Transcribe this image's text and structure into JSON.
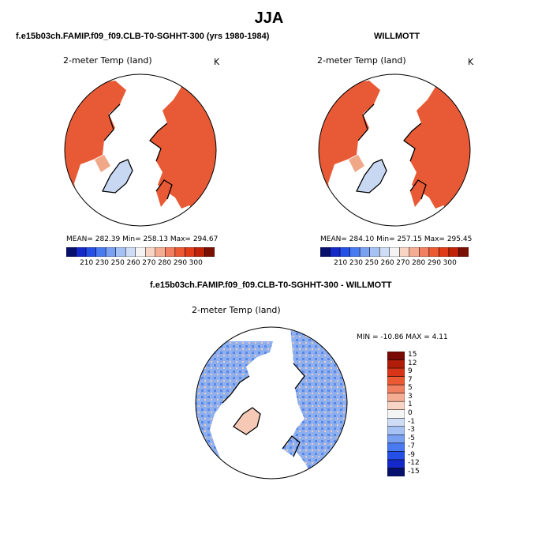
{
  "page": {
    "title": "JJA",
    "left_case": "f.e15b03ch.FAMIP.f09_f09.CLB-T0-SGHHT-300 (yrs 1980-1984)",
    "right_case": "WILLMOTT",
    "diff_case": "f.e15b03ch.FAMIP.f09_f09.CLB-T0-SGHHT-300 - WILLMOTT"
  },
  "panels": {
    "left": {
      "variable": "2-meter Temp (land)",
      "units": "K",
      "stats": "MEAN= 282.39   Min= 258.13   Max= 294.67"
    },
    "right": {
      "variable": "2-meter Temp (land)",
      "units": "K",
      "stats": "MEAN= 284.10   Min= 257.15   Max= 295.45"
    },
    "diff": {
      "variable": "2-meter Temp (land)",
      "stats": "MIN = -10.86  MAX =   4.11"
    }
  },
  "colorbars": {
    "abs_labels": [
      "210",
      "230",
      "250",
      "260",
      "270",
      "280",
      "290",
      "300"
    ],
    "abs_colors": [
      "#08106e",
      "#1429c8",
      "#2450e8",
      "#4a7af0",
      "#7aa0f2",
      "#a6c2f4",
      "#cfdcf6",
      "#f4f4f4",
      "#f8d4c4",
      "#f4ac92",
      "#f08060",
      "#ec5a34",
      "#e03c18",
      "#c02208",
      "#7a1004"
    ],
    "diff_labels": [
      "15",
      "12",
      "9",
      "7",
      "5",
      "3",
      "1",
      "0",
      "-1",
      "-3",
      "-5",
      "-7",
      "-9",
      "-12",
      "-15"
    ],
    "diff_colors": [
      "#7a0a04",
      "#b01e0a",
      "#d83418",
      "#ec5a34",
      "#f08060",
      "#f4ac92",
      "#f8d4c4",
      "#f4f4f4",
      "#cfdcf6",
      "#a6c2f4",
      "#7aa0f2",
      "#4a7af0",
      "#2450e8",
      "#1429c8",
      "#08106e"
    ]
  },
  "map_colors": {
    "warm_land": "#e85a35",
    "warm_land_dark": "#dd4422",
    "cool_land": "#f0a888",
    "ice": "#c8d8f2",
    "diff_land": "#8eb0ee",
    "diff_land_dark": "#5a86e8",
    "diff_warm": "#f6c8b6"
  }
}
